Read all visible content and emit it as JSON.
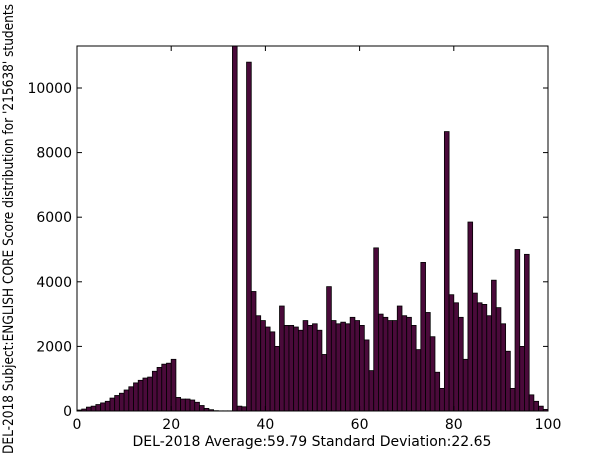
{
  "chart_data": {
    "type": "bar",
    "title": "",
    "xlabel": "DEL-2018 Average:59.79 Standard Deviation:22.65",
    "ylabel": "DEL-2018 Subject:ENGLISH CORE Score distribution for '215638' students",
    "xlim": [
      0,
      100
    ],
    "ylim": [
      0,
      11300
    ],
    "xticks": [
      "0",
      "20",
      "40",
      "60",
      "80",
      "100"
    ],
    "yticks": [
      "0",
      "2000",
      "4000",
      "6000",
      "8000",
      "10000"
    ],
    "grid": false,
    "bar_color": "#4a0a3a",
    "edge_color": "#000000",
    "x": [
      0,
      1,
      2,
      3,
      4,
      5,
      6,
      7,
      8,
      9,
      10,
      11,
      12,
      13,
      14,
      15,
      16,
      17,
      18,
      19,
      20,
      21,
      22,
      23,
      24,
      25,
      26,
      27,
      28,
      29,
      30,
      31,
      32,
      33,
      34,
      35,
      36,
      37,
      38,
      39,
      40,
      41,
      42,
      43,
      44,
      45,
      46,
      47,
      48,
      49,
      50,
      51,
      52,
      53,
      54,
      55,
      56,
      57,
      58,
      59,
      60,
      61,
      62,
      63,
      64,
      65,
      66,
      67,
      68,
      69,
      70,
      71,
      72,
      73,
      74,
      75,
      76,
      77,
      78,
      79,
      80,
      81,
      82,
      83,
      84,
      85,
      86,
      87,
      88,
      89,
      90,
      91,
      92,
      93,
      94,
      95,
      96,
      97,
      98,
      99
    ],
    "values": [
      30,
      60,
      120,
      150,
      200,
      250,
      300,
      400,
      480,
      550,
      650,
      750,
      870,
      950,
      1020,
      1050,
      1230,
      1350,
      1450,
      1480,
      1600,
      420,
      370,
      370,
      340,
      270,
      170,
      80,
      40,
      10,
      5,
      5,
      5,
      11300,
      150,
      130,
      10800,
      3700,
      2950,
      2800,
      2600,
      2450,
      2000,
      3250,
      2650,
      2650,
      2600,
      2500,
      2800,
      2650,
      2700,
      2500,
      1750,
      3850,
      2800,
      2700,
      2750,
      2700,
      2900,
      2800,
      2650,
      2200,
      1250,
      5050,
      3000,
      2900,
      2800,
      2800,
      3250,
      2950,
      2900,
      2650,
      1900,
      4600,
      3050,
      2300,
      1200,
      700,
      8650,
      3600,
      3350,
      2900,
      1600,
      5850,
      3650,
      3350,
      3300,
      2950,
      4050,
      3200,
      2700,
      1850,
      700,
      5000,
      2000,
      4850,
      500,
      300,
      150,
      50
    ]
  }
}
